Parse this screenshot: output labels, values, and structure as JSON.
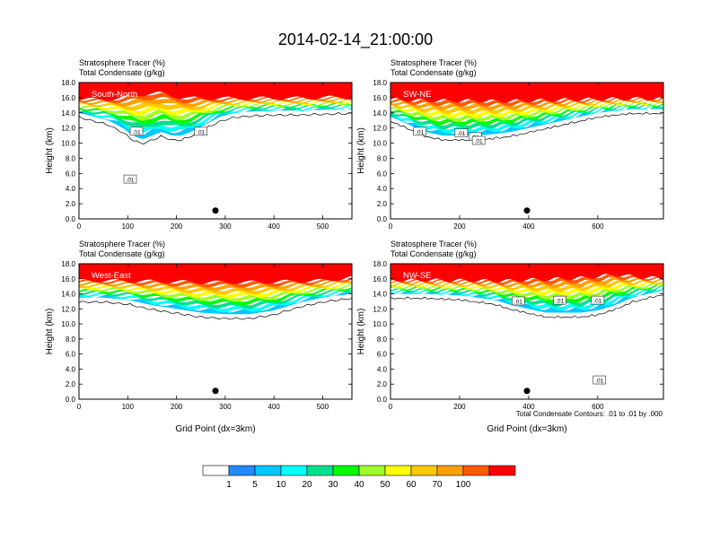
{
  "figure": {
    "title": "2014-02-14_21:00:00",
    "note": "Total Condensate Contours: .01 to .01 by .000"
  },
  "colorbar": {
    "colors": [
      "#ffffff",
      "#1e8cff",
      "#00c8ff",
      "#00ffff",
      "#00e18c",
      "#00ff00",
      "#a0ff28",
      "#ffff00",
      "#ffc800",
      "#ffa000",
      "#ff5a00",
      "#ff0000"
    ],
    "labels": [
      "1",
      "5",
      "10",
      "20",
      "30",
      "40",
      "50",
      "60",
      "70",
      "100"
    ]
  },
  "chart_data": [
    {
      "type": "heatmap",
      "panel_label": "South-North",
      "title_lines": [
        "Stratosphere Tracer   (%)",
        "Total Condensate   (g/kg)"
      ],
      "ylabel": "Height (km)",
      "xlabel": "",
      "xlim": [
        0,
        560
      ],
      "ylim": [
        0,
        18
      ],
      "xticks": [
        0,
        100,
        200,
        300,
        400,
        500
      ],
      "yticks": [
        "0.0",
        "2.0",
        "4.0",
        "6.0",
        "8.0",
        "10.0",
        "12.0",
        "14.0",
        "16.0",
        "18.0"
      ],
      "marker": {
        "x": 280,
        "y": 1.1
      },
      "contour_labels": [
        {
          "x": 118,
          "y": 11.5,
          "text": ".01"
        },
        {
          "x": 250,
          "y": 11.5,
          "text": ".01"
        },
        {
          "x": 105,
          "y": 5.2,
          "text": ".01"
        }
      ],
      "profile": {
        "x": [
          0,
          30,
          60,
          90,
          110,
          130,
          150,
          170,
          190,
          210,
          230,
          260,
          290,
          320,
          360,
          400,
          450,
          500,
          560
        ],
        "base_km": [
          14.0,
          13.5,
          13.0,
          12.0,
          11.0,
          10.5,
          11.0,
          11.5,
          11.0,
          11.0,
          11.5,
          12.5,
          13.5,
          14.0,
          14.2,
          14.3,
          14.3,
          14.4,
          14.5
        ],
        "tropopause_km": [
          16.0,
          16.0,
          16.1,
          16.4,
          16.8,
          17.1,
          17.2,
          17.1,
          16.8,
          16.6,
          16.4,
          16.3,
          16.2,
          16.1,
          16.1,
          16.1,
          16.1,
          16.2,
          16.2
        ]
      }
    },
    {
      "type": "heatmap",
      "panel_label": "SW-NE",
      "title_lines": [
        "Stratosphere Tracer   (%)",
        "Total Condensate   (g/kg)"
      ],
      "ylabel": "Height (km)",
      "xlabel": "",
      "xlim": [
        0,
        790
      ],
      "ylim": [
        0,
        18
      ],
      "xticks": [
        0,
        200,
        400,
        600
      ],
      "yticks": [
        "0.0",
        "2.0",
        "4.0",
        "6.0",
        "8.0",
        "10.0",
        "12.0",
        "14.0",
        "16.0",
        "18.0"
      ],
      "marker": {
        "x": 395,
        "y": 1.1
      },
      "contour_labels": [
        {
          "x": 85,
          "y": 11.5,
          "text": ".01"
        },
        {
          "x": 205,
          "y": 11.3,
          "text": ".01"
        },
        {
          "x": 245,
          "y": 10.8,
          "text": ".01"
        },
        {
          "x": 255,
          "y": 10.3,
          "text": ".01"
        }
      ],
      "profile": {
        "x": [
          0,
          50,
          100,
          150,
          200,
          250,
          300,
          350,
          400,
          450,
          500,
          550,
          600,
          650,
          700,
          790
        ],
        "base_km": [
          13.5,
          12.5,
          11.5,
          11.0,
          11.0,
          11.0,
          11.2,
          11.5,
          12.0,
          12.5,
          13.0,
          13.5,
          14.0,
          14.3,
          14.5,
          14.5
        ],
        "tropopause_km": [
          16.0,
          16.0,
          16.1,
          16.1,
          16.1,
          16.1,
          16.0,
          16.0,
          16.0,
          16.0,
          16.0,
          16.0,
          16.0,
          16.0,
          16.0,
          16.0
        ]
      }
    },
    {
      "type": "heatmap",
      "panel_label": "West-East",
      "title_lines": [
        "Stratosphere Tracer   (%)",
        "Total Condensate   (g/kg)"
      ],
      "ylabel": "Height (km)",
      "xlabel": "Grid Point (dx=3km)",
      "xlim": [
        0,
        560
      ],
      "ylim": [
        0,
        18
      ],
      "xticks": [
        0,
        100,
        200,
        300,
        400,
        500
      ],
      "yticks": [
        "0.0",
        "2.0",
        "4.0",
        "6.0",
        "8.0",
        "10.0",
        "12.0",
        "14.0",
        "16.0",
        "18.0"
      ],
      "marker": {
        "x": 280,
        "y": 1.1
      },
      "contour_labels": [],
      "profile": {
        "x": [
          0,
          50,
          100,
          150,
          200,
          250,
          300,
          350,
          400,
          450,
          500,
          560
        ],
        "base_km": [
          13.5,
          13.5,
          13.2,
          12.5,
          12.0,
          11.5,
          11.3,
          11.3,
          11.8,
          12.8,
          13.5,
          14.0
        ],
        "tropopause_km": [
          16.0,
          16.0,
          16.0,
          16.0,
          16.0,
          16.0,
          16.0,
          16.0,
          16.0,
          16.0,
          16.0,
          16.4
        ]
      }
    },
    {
      "type": "heatmap",
      "panel_label": "NW-SE",
      "title_lines": [
        "Stratosphere Tracer   (%)",
        "Total Condensate   (g/kg)"
      ],
      "ylabel": "Height (km)",
      "xlabel": "Grid Point (dx=3km)",
      "xlim": [
        0,
        790
      ],
      "ylim": [
        0,
        18
      ],
      "xticks": [
        0,
        200,
        400,
        600
      ],
      "yticks": [
        "0.0",
        "2.0",
        "4.0",
        "6.0",
        "8.0",
        "10.0",
        "12.0",
        "14.0",
        "16.0",
        "18.0"
      ],
      "marker": {
        "x": 395,
        "y": 1.1
      },
      "contour_labels": [
        {
          "x": 370,
          "y": 13.0,
          "text": ".01"
        },
        {
          "x": 490,
          "y": 13.1,
          "text": ".01"
        },
        {
          "x": 600,
          "y": 13.1,
          "text": ".01"
        },
        {
          "x": 605,
          "y": 2.5,
          "text": ".01"
        }
      ],
      "profile": {
        "x": [
          0,
          100,
          200,
          300,
          350,
          400,
          450,
          500,
          550,
          600,
          650,
          700,
          790
        ],
        "base_km": [
          14.0,
          14.0,
          13.8,
          13.2,
          12.5,
          12.0,
          11.5,
          11.5,
          11.5,
          11.8,
          12.5,
          13.5,
          14.5
        ],
        "tropopause_km": [
          16.0,
          16.0,
          16.0,
          16.0,
          16.1,
          16.3,
          16.4,
          16.5,
          16.6,
          16.8,
          17.0,
          16.6,
          16.2
        ]
      }
    }
  ]
}
